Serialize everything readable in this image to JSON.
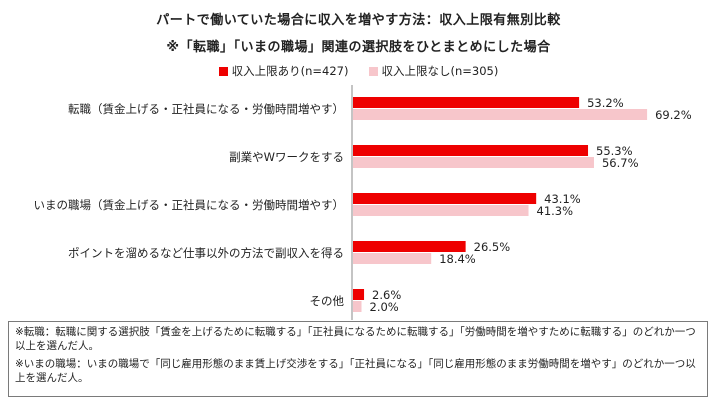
{
  "chart_data": {
    "type": "bar",
    "orientation": "horizontal",
    "title": "パートで働いていた場合に収入を増やす方法：収入上限有無別比較",
    "subtitle": "※「転職」「いまの職場」関連の選択肢をひとまとめにした場合",
    "categories": [
      "転職（賃金上げる・正社員になる・労働時間増やす）",
      "副業やWワークをする",
      "いまの職場（賃金上げる・正社員になる・労働時間増やす）",
      "ポイントを溜めるなど仕事以外の方法で副収入を得る",
      "その他"
    ],
    "series": [
      {
        "name": "収入上限あり(n=427)",
        "values": [
          53.2,
          55.3,
          43.1,
          26.5,
          2.6
        ],
        "labels": [
          "53.2%",
          "55.3%",
          "43.1%",
          "26.5%",
          "2.6%"
        ],
        "color": "#ee0000"
      },
      {
        "name": "収入上限なし(n=305)",
        "values": [
          69.2,
          56.7,
          41.3,
          18.4,
          2.0
        ],
        "labels": [
          "69.2%",
          "56.7%",
          "41.3%",
          "18.4%",
          "2.0%"
        ],
        "color": "#f7c6cb"
      }
    ],
    "xlim": [
      0,
      100
    ],
    "legend_position": "top-center",
    "grid": false
  },
  "notes": [
    "※転職：転職に関する選択肢「賃金を上げるために転職する」「正社員になるために転職する」「労働時間を増やすために転職する」のどれか一つ以上を選んだ人。",
    "※いまの職場：いまの職場で「同じ雇用形態のまま賃上げ交渉をする」「正社員になる」「同じ雇用形態のまま労働時間を増やす」のどれか一つ以上を選んだ人。"
  ]
}
